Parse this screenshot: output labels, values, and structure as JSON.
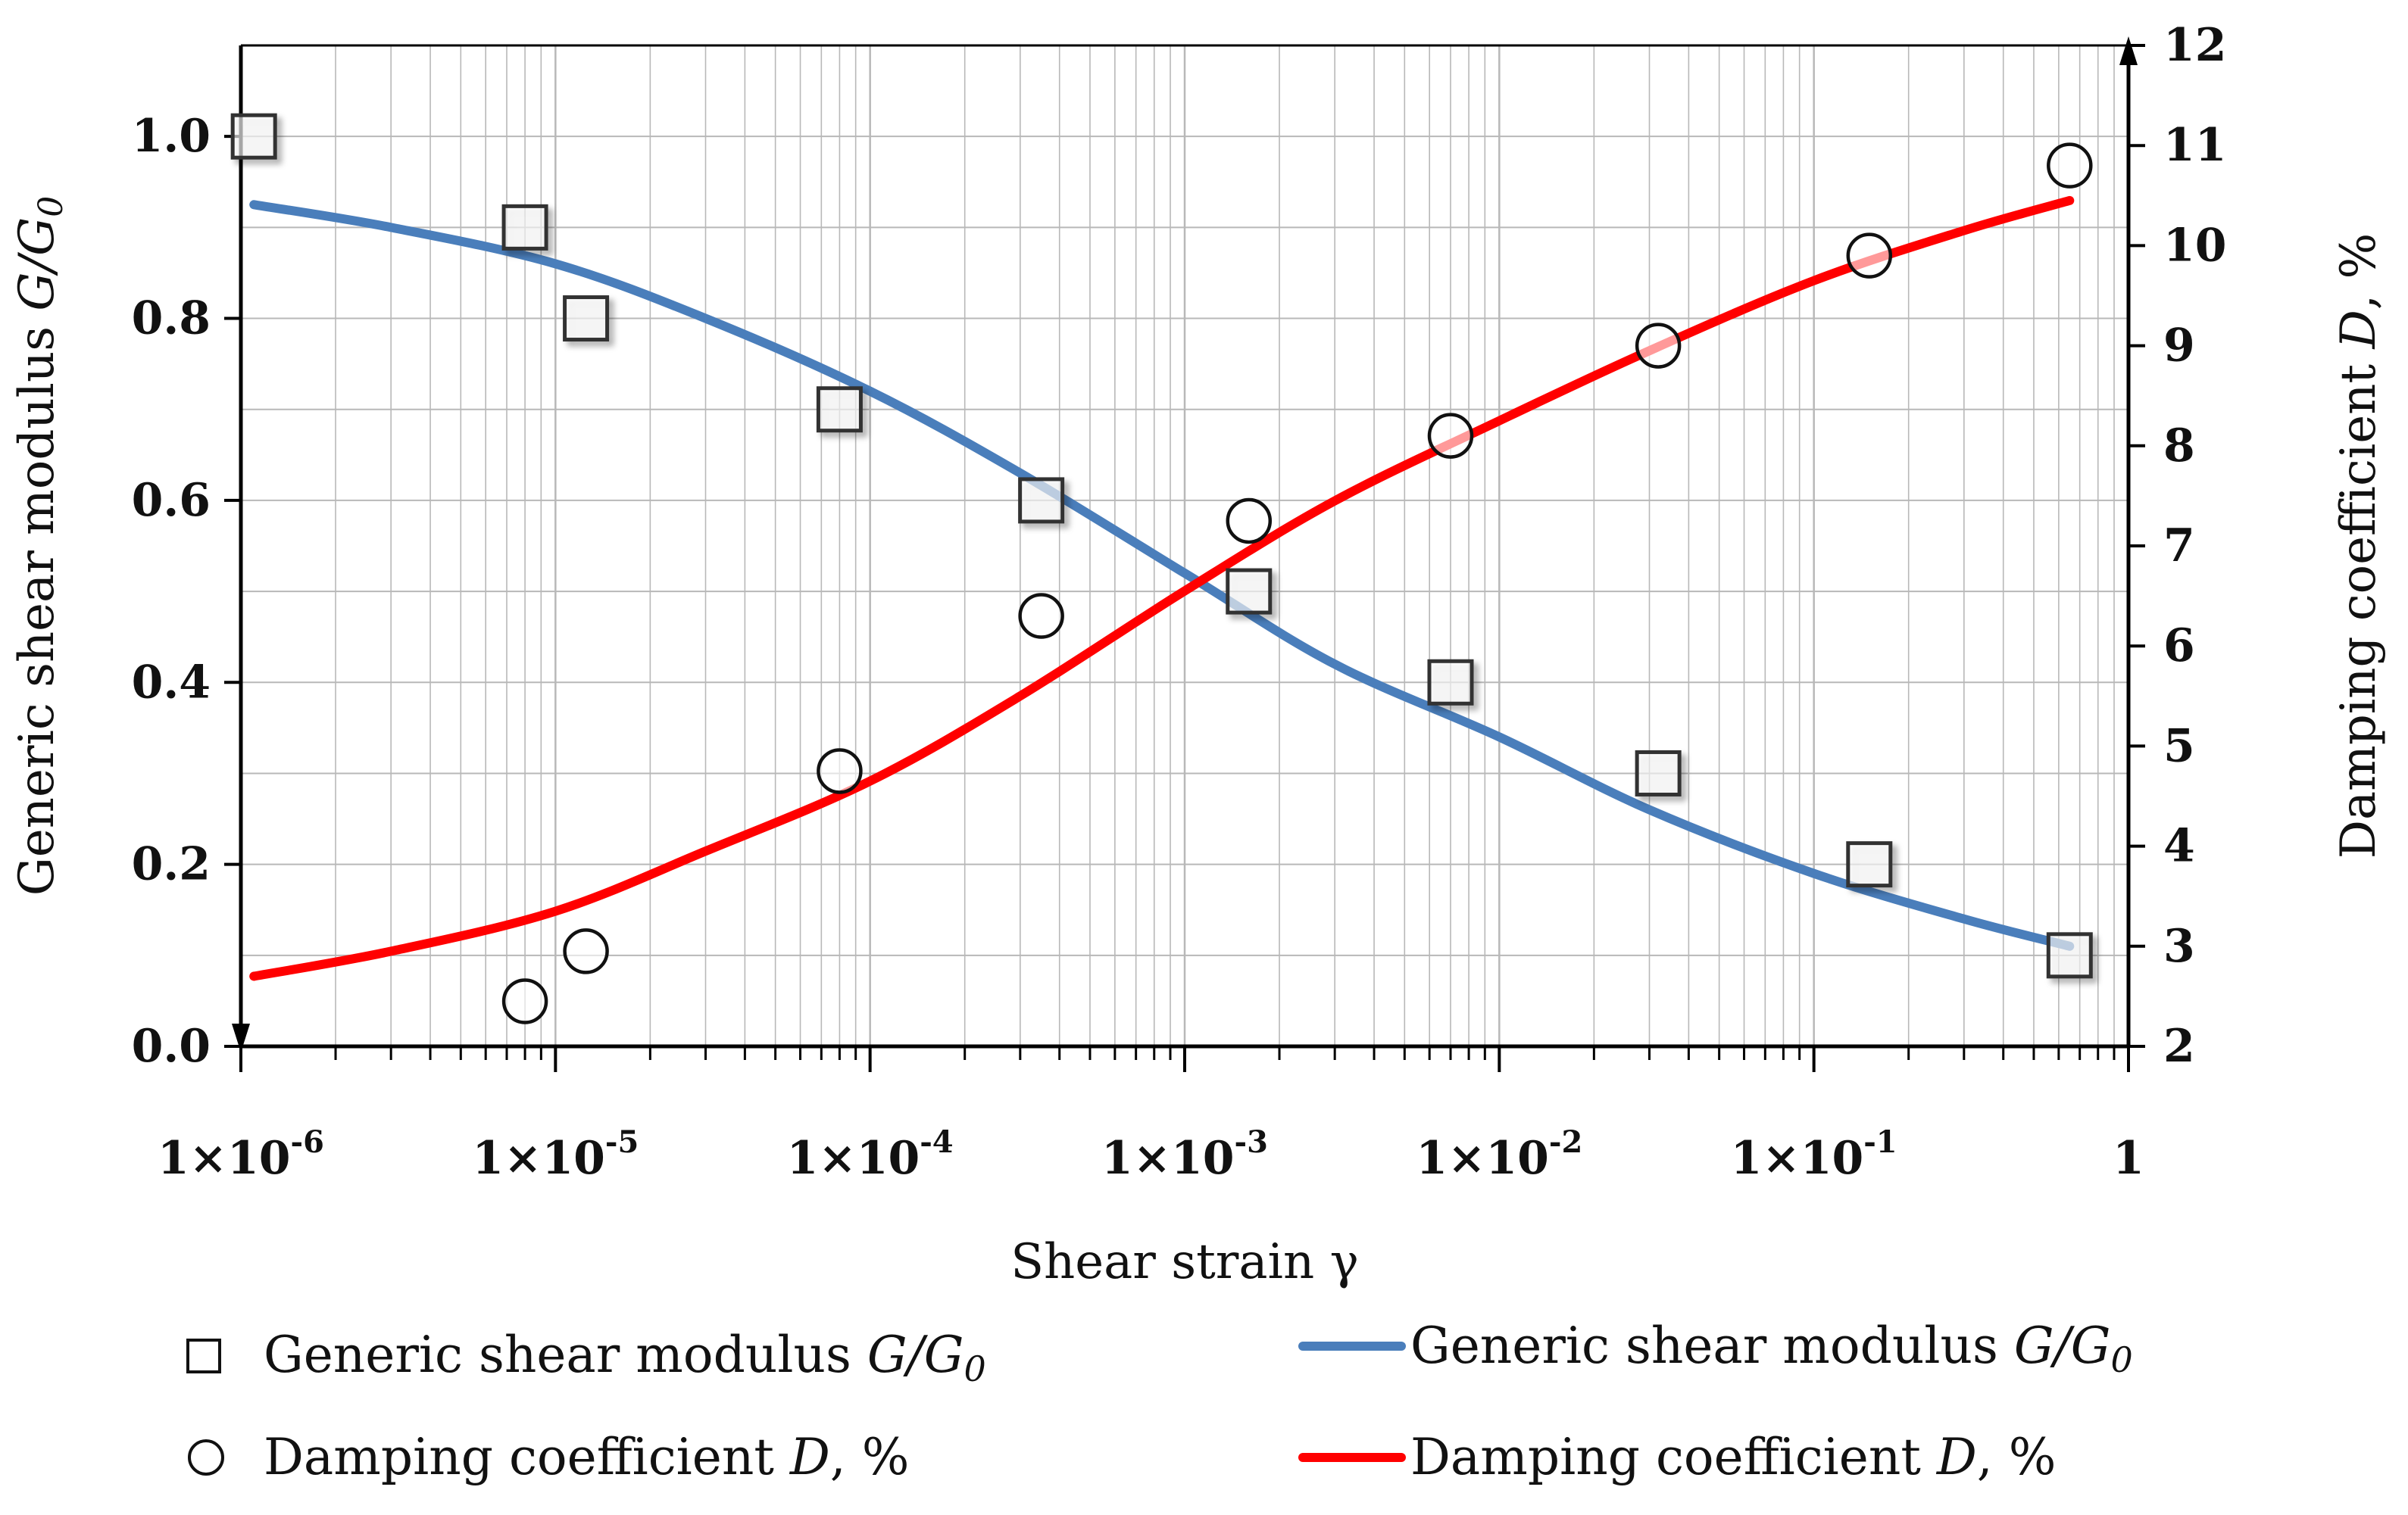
{
  "chart_data": {
    "type": "scatter+line",
    "xscale": "log",
    "xlabel": "Shear strain γ",
    "ylabel_left": "Generic shear modulus G/G0",
    "ylabel_left_parts": {
      "prefix": "Generic shear modulus ",
      "var": "G/G",
      "sub": "0"
    },
    "ylabel_right": "Damping coefficient D, %",
    "ylabel_right_parts": {
      "prefix": "Damping coefficient ",
      "var": "D",
      "suffix": ", %"
    },
    "xlim": [
      1e-06,
      1
    ],
    "ylim_left": [
      0,
      1.1
    ],
    "ylim_right": [
      2,
      12
    ],
    "grid": true,
    "x_ticks": [
      {
        "value": 1e-06,
        "base": "1×10",
        "exp": "-6"
      },
      {
        "value": 1e-05,
        "base": "1×10",
        "exp": "-5"
      },
      {
        "value": 0.0001,
        "base": "1×10",
        "exp": "-4"
      },
      {
        "value": 0.001,
        "base": "1×10",
        "exp": "-3"
      },
      {
        "value": 0.01,
        "base": "1×10",
        "exp": "-2"
      },
      {
        "value": 0.1,
        "base": "1×10",
        "exp": "-1"
      },
      {
        "value": 1,
        "base": "1",
        "exp": ""
      }
    ],
    "y_left_ticks": [
      {
        "value": 0.0,
        "label": "0.0"
      },
      {
        "value": 0.2,
        "label": "0.2"
      },
      {
        "value": 0.4,
        "label": "0.4"
      },
      {
        "value": 0.6,
        "label": "0.6"
      },
      {
        "value": 0.8,
        "label": "0.8"
      },
      {
        "value": 1.0,
        "label": "1.0"
      }
    ],
    "y_right_ticks": [
      {
        "value": 2,
        "label": "2"
      },
      {
        "value": 3,
        "label": "3"
      },
      {
        "value": 4,
        "label": "4"
      },
      {
        "value": 5,
        "label": "5"
      },
      {
        "value": 6,
        "label": "6"
      },
      {
        "value": 7,
        "label": "7"
      },
      {
        "value": 8,
        "label": "8"
      },
      {
        "value": 9,
        "label": "9"
      },
      {
        "value": 10,
        "label": "10"
      },
      {
        "value": 11,
        "label": "11"
      },
      {
        "value": 12,
        "label": "12"
      }
    ],
    "series": [
      {
        "name": "Generic shear modulus G/G0 (data)",
        "kind": "scatter",
        "marker": "square",
        "axis": "left",
        "x": [
          1.1e-06,
          8e-06,
          1.25e-05,
          8e-05,
          0.00035,
          0.0016,
          0.007,
          0.032,
          0.15,
          0.65
        ],
        "y": [
          1.0,
          0.9,
          0.8,
          0.7,
          0.6,
          0.5,
          0.4,
          0.3,
          0.2,
          0.1
        ]
      },
      {
        "name": "Damping coefficient D, % (data)",
        "kind": "scatter",
        "marker": "circle",
        "axis": "right",
        "x": [
          8e-06,
          1.25e-05,
          8e-05,
          0.00035,
          0.0016,
          0.007,
          0.032,
          0.15,
          0.65
        ],
        "y": [
          2.45,
          2.95,
          4.75,
          6.3,
          7.25,
          8.1,
          9.0,
          9.9,
          10.8
        ]
      },
      {
        "name": "Generic shear modulus G/G0 (curve)",
        "kind": "line",
        "color": "#4a7ebb",
        "axis": "left",
        "x": [
          1.1e-06,
          3e-06,
          1e-05,
          3e-05,
          0.0001,
          0.0003,
          0.001,
          0.003,
          0.01,
          0.03,
          0.1,
          0.3,
          0.65
        ],
        "y": [
          0.925,
          0.9,
          0.86,
          0.8,
          0.72,
          0.63,
          0.52,
          0.42,
          0.34,
          0.26,
          0.19,
          0.14,
          0.11
        ]
      },
      {
        "name": "Damping coefficient D, % (curve)",
        "kind": "line",
        "color": "#ff0000",
        "axis": "right",
        "x": [
          1.1e-06,
          3e-06,
          1e-05,
          3e-05,
          0.0001,
          0.0003,
          0.001,
          0.003,
          0.01,
          0.03,
          0.1,
          0.3,
          0.65
        ],
        "y": [
          2.7,
          2.95,
          3.35,
          3.95,
          4.65,
          5.5,
          6.55,
          7.45,
          8.25,
          8.95,
          9.65,
          10.15,
          10.45
        ]
      }
    ],
    "legend": {
      "placement": "bottom",
      "items": [
        {
          "marker": "square",
          "prefix": "Generic shear modulus ",
          "var": "G/G",
          "sub": "0",
          "suffix": ""
        },
        {
          "marker": "blue-line",
          "prefix": "Generic shear modulus ",
          "var": "G/G",
          "sub": "0",
          "suffix": ""
        },
        {
          "marker": "circle",
          "prefix": "Damping coefficient ",
          "var": "D",
          "sub": "",
          "suffix": ", %"
        },
        {
          "marker": "red-line",
          "prefix": "Damping coefficient ",
          "var": "D",
          "sub": "",
          "suffix": ", %"
        }
      ]
    },
    "colors": {
      "blue_line": "#4a7ebb",
      "red_line": "#ff0000",
      "marker_fill": "#ffffff",
      "marker_stroke": "#333333",
      "grid": "#b8b8b8",
      "axis": "#000000"
    }
  }
}
